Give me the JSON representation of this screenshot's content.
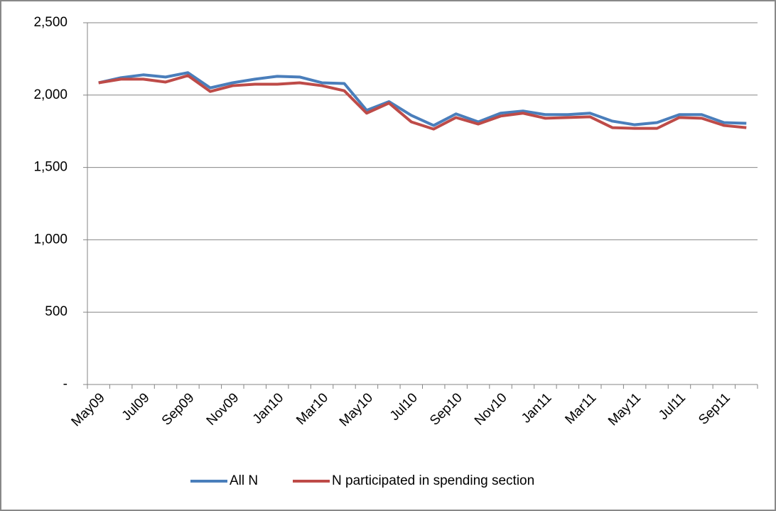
{
  "chart_data": {
    "type": "line",
    "categories": [
      "May09",
      null,
      "Jul09",
      null,
      "Sep09",
      null,
      "Nov09",
      null,
      "Jan10",
      null,
      "Mar10",
      null,
      "May10",
      null,
      "Jul10",
      null,
      "Sep10",
      null,
      "Nov10",
      null,
      "Jan11",
      null,
      "Mar11",
      null,
      "May11",
      null,
      "Jul11",
      null,
      "Sep11",
      null
    ],
    "series": [
      {
        "name": "All N",
        "color": "#4a7ebb",
        "values": [
          2085,
          2120,
          2140,
          2125,
          2155,
          2050,
          2085,
          2110,
          2130,
          2125,
          2085,
          2080,
          1895,
          1955,
          1860,
          1790,
          1870,
          1815,
          1875,
          1890,
          1865,
          1865,
          1875,
          1820,
          1795,
          1810,
          1865,
          1865,
          1810,
          1805
        ]
      },
      {
        "name": "N participated in spending section",
        "color": "#be4b48",
        "values": [
          2085,
          2110,
          2110,
          2090,
          2135,
          2025,
          2065,
          2075,
          2075,
          2085,
          2065,
          2030,
          1875,
          1945,
          1815,
          1765,
          1845,
          1800,
          1855,
          1875,
          1840,
          1845,
          1850,
          1775,
          1770,
          1770,
          1845,
          1840,
          1790,
          1775
        ]
      }
    ],
    "ylim": [
      0,
      2500
    ],
    "yticks": [
      {
        "value": 0,
        "label": "-"
      },
      500,
      {
        "value": 1000,
        "label": "1,000"
      },
      {
        "value": 1500,
        "label": "1,500"
      },
      {
        "value": 2000,
        "label": "2,000"
      },
      {
        "value": 2500,
        "label": "2,500"
      }
    ],
    "grid": true,
    "legend": "bottom"
  }
}
